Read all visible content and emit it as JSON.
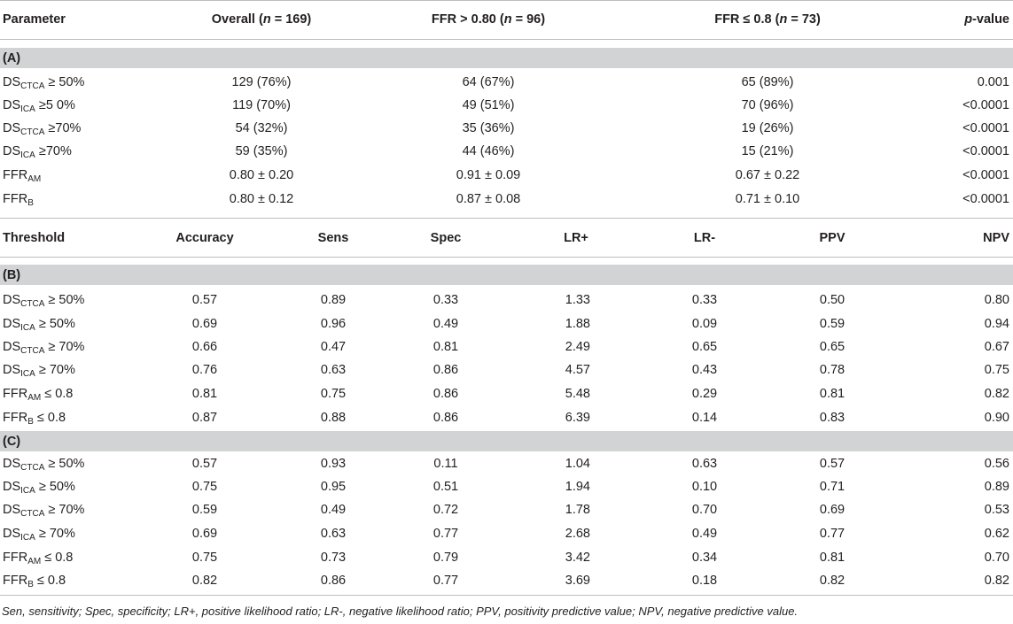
{
  "table": {
    "part1": {
      "headers": [
        "Parameter",
        "Overall (",
        "n",
        " = 169)",
        "FFR > 0.80 (",
        "n",
        " = 96)",
        "FFR ≤ 0.8 (",
        "n",
        " = 73)",
        "p",
        "-value"
      ],
      "section": "(A)",
      "rows": [
        {
          "base": "DS",
          "sub": "CTCA",
          "suffix": " ≥ 50%",
          "overall": "129 (76%)",
          "ffr_gt": "64 (67%)",
          "ffr_le": "65 (89%)",
          "p": "0.001"
        },
        {
          "base": "DS",
          "sub": "ICA",
          "suffix": " ≥5 0%",
          "overall": "119 (70%)",
          "ffr_gt": "49 (51%)",
          "ffr_le": "70 (96%)",
          "p": "<0.0001"
        },
        {
          "base": "DS",
          "sub": "CTCA",
          "suffix": " ≥70%",
          "overall": "54 (32%)",
          "ffr_gt": "35 (36%)",
          "ffr_le": "19 (26%)",
          "p": "<0.0001"
        },
        {
          "base": "DS",
          "sub": "ICA",
          "suffix": " ≥70%",
          "overall": "59 (35%)",
          "ffr_gt": "44 (46%)",
          "ffr_le": "15 (21%)",
          "p": "<0.0001"
        },
        {
          "base": "FFR",
          "sub": "AM",
          "suffix": "",
          "overall": "0.80 ± 0.20",
          "ffr_gt": "0.91 ± 0.09",
          "ffr_le": "0.67 ± 0.22",
          "p": "<0.0001"
        },
        {
          "base": "FFR",
          "sub": "B",
          "suffix": "",
          "overall": "0.80 ± 0.12",
          "ffr_gt": "0.87 ± 0.08",
          "ffr_le": "0.71 ± 0.10",
          "p": "<0.0001"
        }
      ]
    },
    "part2": {
      "headers": [
        "Threshold",
        "Accuracy",
        "Sens",
        "Spec",
        "LR+",
        "LR-",
        "PPV",
        "NPV"
      ],
      "sections": [
        {
          "label": "(B)",
          "rows": [
            {
              "base": "DS",
              "sub": "CTCA",
              "suffix": " ≥ 50%",
              "values": [
                "0.57",
                "0.89",
                "0.33",
                "1.33",
                "0.33",
                "0.50",
                "0.80"
              ]
            },
            {
              "base": "DS",
              "sub": "ICA",
              "suffix": " ≥ 50%",
              "values": [
                "0.69",
                "0.96",
                "0.49",
                "1.88",
                "0.09",
                "0.59",
                "0.94"
              ]
            },
            {
              "base": "DS",
              "sub": "CTCA",
              "suffix": " ≥ 70%",
              "values": [
                "0.66",
                "0.47",
                "0.81",
                "2.49",
                "0.65",
                "0.65",
                "0.67"
              ]
            },
            {
              "base": "DS",
              "sub": "ICA",
              "suffix": " ≥ 70%",
              "values": [
                "0.76",
                "0.63",
                "0.86",
                "4.57",
                "0.43",
                "0.78",
                "0.75"
              ]
            },
            {
              "base": "FFR",
              "sub": "AM",
              "suffix": " ≤ 0.8",
              "values": [
                "0.81",
                "0.75",
                "0.86",
                "5.48",
                "0.29",
                "0.81",
                "0.82"
              ]
            },
            {
              "base": "FFR",
              "sub": "B",
              "suffix": " ≤ 0.8",
              "values": [
                "0.87",
                "0.88",
                "0.86",
                "6.39",
                "0.14",
                "0.83",
                "0.90"
              ]
            }
          ]
        },
        {
          "label": "(C)",
          "rows": [
            {
              "base": "DS",
              "sub": "CTCA",
              "suffix": " ≥ 50%",
              "values": [
                "0.57",
                "0.93",
                "0.11",
                "1.04",
                "0.63",
                "0.57",
                "0.56"
              ]
            },
            {
              "base": "DS",
              "sub": "ICA",
              "suffix": " ≥ 50%",
              "values": [
                "0.75",
                "0.95",
                "0.51",
                "1.94",
                "0.10",
                "0.71",
                "0.89"
              ]
            },
            {
              "base": "DS",
              "sub": "CTCA",
              "suffix": " ≥ 70%",
              "values": [
                "0.59",
                "0.49",
                "0.72",
                "1.78",
                "0.70",
                "0.69",
                "0.53"
              ]
            },
            {
              "base": "DS",
              "sub": "ICA",
              "suffix": " ≥ 70%",
              "values": [
                "0.69",
                "0.63",
                "0.77",
                "2.68",
                "0.49",
                "0.77",
                "0.62"
              ]
            },
            {
              "base": "FFR",
              "sub": "AM",
              "suffix": " ≤ 0.8",
              "values": [
                "0.75",
                "0.73",
                "0.79",
                "3.42",
                "0.34",
                "0.81",
                "0.70"
              ]
            },
            {
              "base": "FFR",
              "sub": "B",
              "suffix": " ≤ 0.8",
              "values": [
                "0.82",
                "0.86",
                "0.77",
                "3.69",
                "0.18",
                "0.82",
                "0.82"
              ]
            }
          ]
        }
      ]
    },
    "footnote": "Sen, sensitivity; Spec, specificity; LR+, positive likelihood ratio; LR-, negative likelihood ratio; PPV, positivity predictive value; NPV, negative predictive value."
  }
}
